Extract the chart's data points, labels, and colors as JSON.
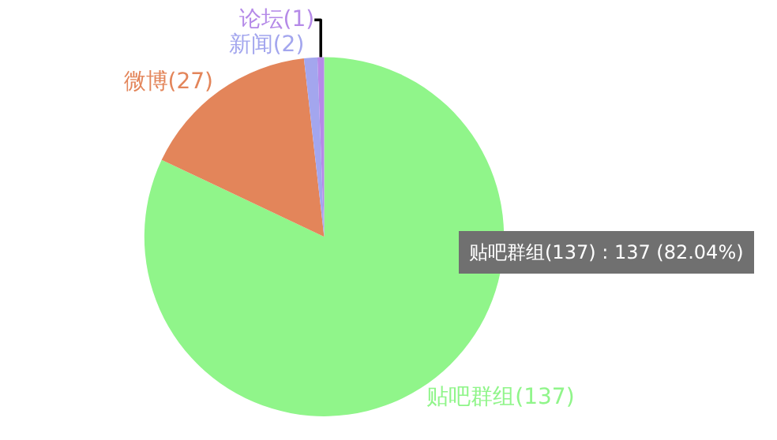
{
  "chart_data": {
    "type": "pie",
    "categories": [
      "贴吧群组(137)",
      "微博(27)",
      "新闻(2)",
      "论坛(1)"
    ],
    "values": [
      137,
      27,
      2,
      1
    ],
    "colors": [
      "#90f58a",
      "#e3855a",
      "#a3a6ee",
      "#b58ae8"
    ],
    "annotations": [
      "贴吧群组(137) : 137 (82.04%)"
    ],
    "legend": false
  }
}
